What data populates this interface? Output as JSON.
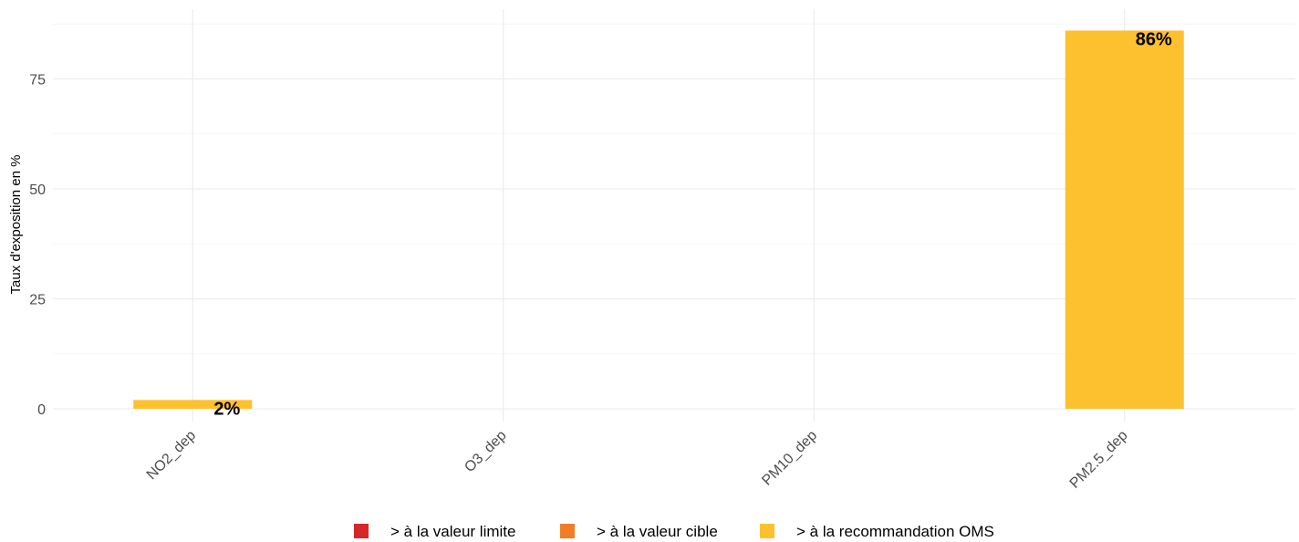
{
  "chart_data": {
    "type": "bar",
    "ylabel": "Taux d'exposition en %",
    "xlabel": "",
    "categories": [
      "NO2_dep",
      "O3_dep",
      "PM10_dep",
      "PM2.5_dep"
    ],
    "ylim": [
      0,
      86
    ],
    "yticks": [
      0,
      25,
      50,
      75
    ],
    "grid": true,
    "legend_position": "bottom",
    "series": [
      {
        "name": "> à la valeur limite",
        "color": "#D62728",
        "values": [
          0,
          0,
          0,
          0
        ]
      },
      {
        "name": "> à la valeur cible",
        "color": "#F07E26",
        "values": [
          0,
          0,
          0,
          0
        ]
      },
      {
        "name": "> à la recommandation OMS",
        "color": "#FDC02F",
        "values": [
          2,
          0,
          0,
          86
        ]
      }
    ],
    "data_labels": [
      {
        "category": "NO2_dep",
        "text": "2%"
      },
      {
        "category": "PM2.5_dep",
        "text": "86%"
      }
    ]
  }
}
